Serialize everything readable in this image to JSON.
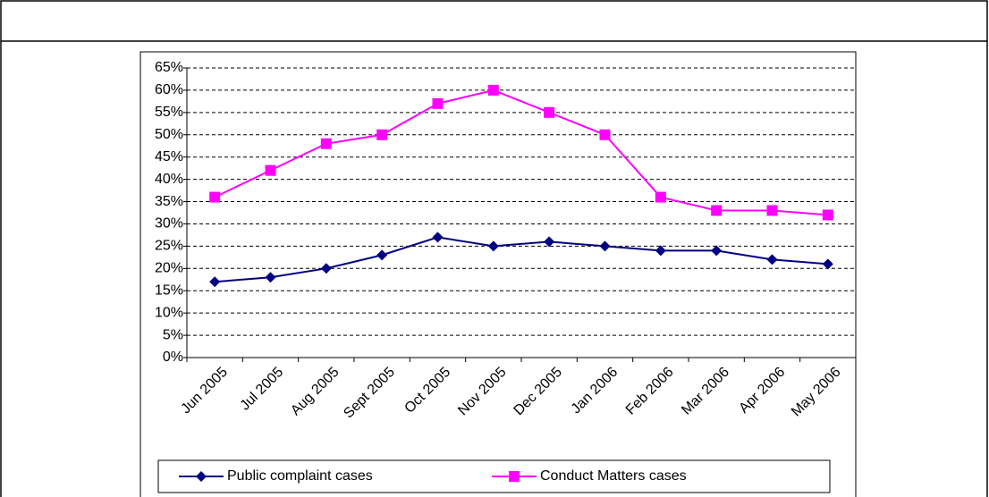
{
  "chart_data": {
    "type": "line",
    "categories": [
      "Jun 2005",
      "Jul 2005",
      "Aug 2005",
      "Sept 2005",
      "Oct 2005",
      "Nov 2005",
      "Dec 2005",
      "Jan 2006",
      "Feb 2006",
      "Mar 2006",
      "Apr 2006",
      "May 2006"
    ],
    "series": [
      {
        "name": "Public complaint cases",
        "color": "#000080",
        "marker": "diamond",
        "values": [
          17,
          18,
          20,
          23,
          27,
          25,
          26,
          25,
          24,
          24,
          22,
          21
        ]
      },
      {
        "name": "Conduct Matters cases",
        "color": "#ff00ff",
        "marker": "square",
        "values": [
          36,
          42,
          48,
          50,
          57,
          60,
          55,
          50,
          36,
          33,
          33,
          32
        ]
      }
    ],
    "ylim": [
      0,
      65
    ],
    "yticks": [
      {
        "value": 0,
        "label": "0%"
      },
      {
        "value": 5,
        "label": "5%"
      },
      {
        "value": 10,
        "label": "10%"
      },
      {
        "value": 15,
        "label": "15%"
      },
      {
        "value": 20,
        "label": "20%"
      },
      {
        "value": 25,
        "label": "25%"
      },
      {
        "value": 30,
        "label": "30%"
      },
      {
        "value": 35,
        "label": "35%"
      },
      {
        "value": 40,
        "label": "40%"
      },
      {
        "value": 45,
        "label": "45%"
      },
      {
        "value": 50,
        "label": "50%"
      },
      {
        "value": 55,
        "label": "55%"
      },
      {
        "value": 60,
        "label": "60%"
      },
      {
        "value": 65,
        "label": "65%"
      }
    ],
    "grid": true,
    "legend": "bottom"
  }
}
